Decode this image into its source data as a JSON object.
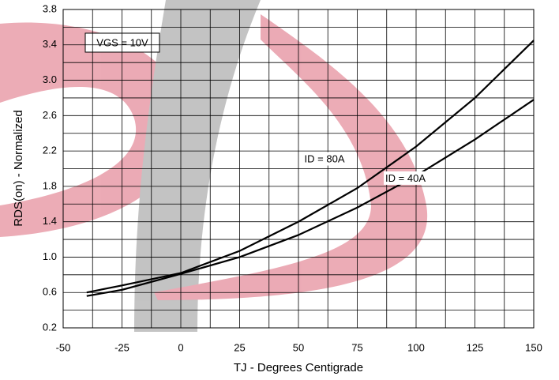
{
  "chart_data": {
    "type": "line",
    "xlabel": "TJ - Degrees Centigrade",
    "ylabel": "RDS(on) - Normalized",
    "annotation": "VGS = 10V",
    "xlim": [
      -50,
      150
    ],
    "xticks": [
      -50,
      -25,
      0,
      25,
      50,
      75,
      100,
      125,
      150
    ],
    "minor_xticks": [
      -37.5,
      -12.5,
      12.5,
      37.5,
      62.5,
      87.5,
      112.5,
      137.5
    ],
    "ylim": [
      0.2,
      3.8
    ],
    "yticks": [
      0.2,
      0.6,
      {
        "value": 1,
        "label": "1.0"
      },
      1.4,
      1.8,
      2.2,
      2.6,
      {
        "value": 3,
        "label": "3.0"
      },
      3.4,
      3.8
    ],
    "minor_yticks": [
      0.4,
      0.8,
      1.2,
      1.6,
      2,
      2.4,
      2.8,
      3.2,
      3.6
    ],
    "grid": true,
    "x": [
      -40,
      -25,
      0,
      25,
      50,
      75,
      100,
      125,
      150
    ],
    "series": [
      {
        "name": "ID = 80A",
        "color": "#000000",
        "values": [
          0.6,
          0.68,
          0.82,
          1.07,
          1.4,
          1.78,
          2.25,
          2.8,
          3.45
        ]
      },
      {
        "name": "ID = 40A",
        "color": "#000000",
        "values": [
          0.56,
          0.63,
          0.81,
          1.0,
          1.25,
          1.56,
          1.92,
          2.33,
          2.78
        ]
      }
    ]
  }
}
